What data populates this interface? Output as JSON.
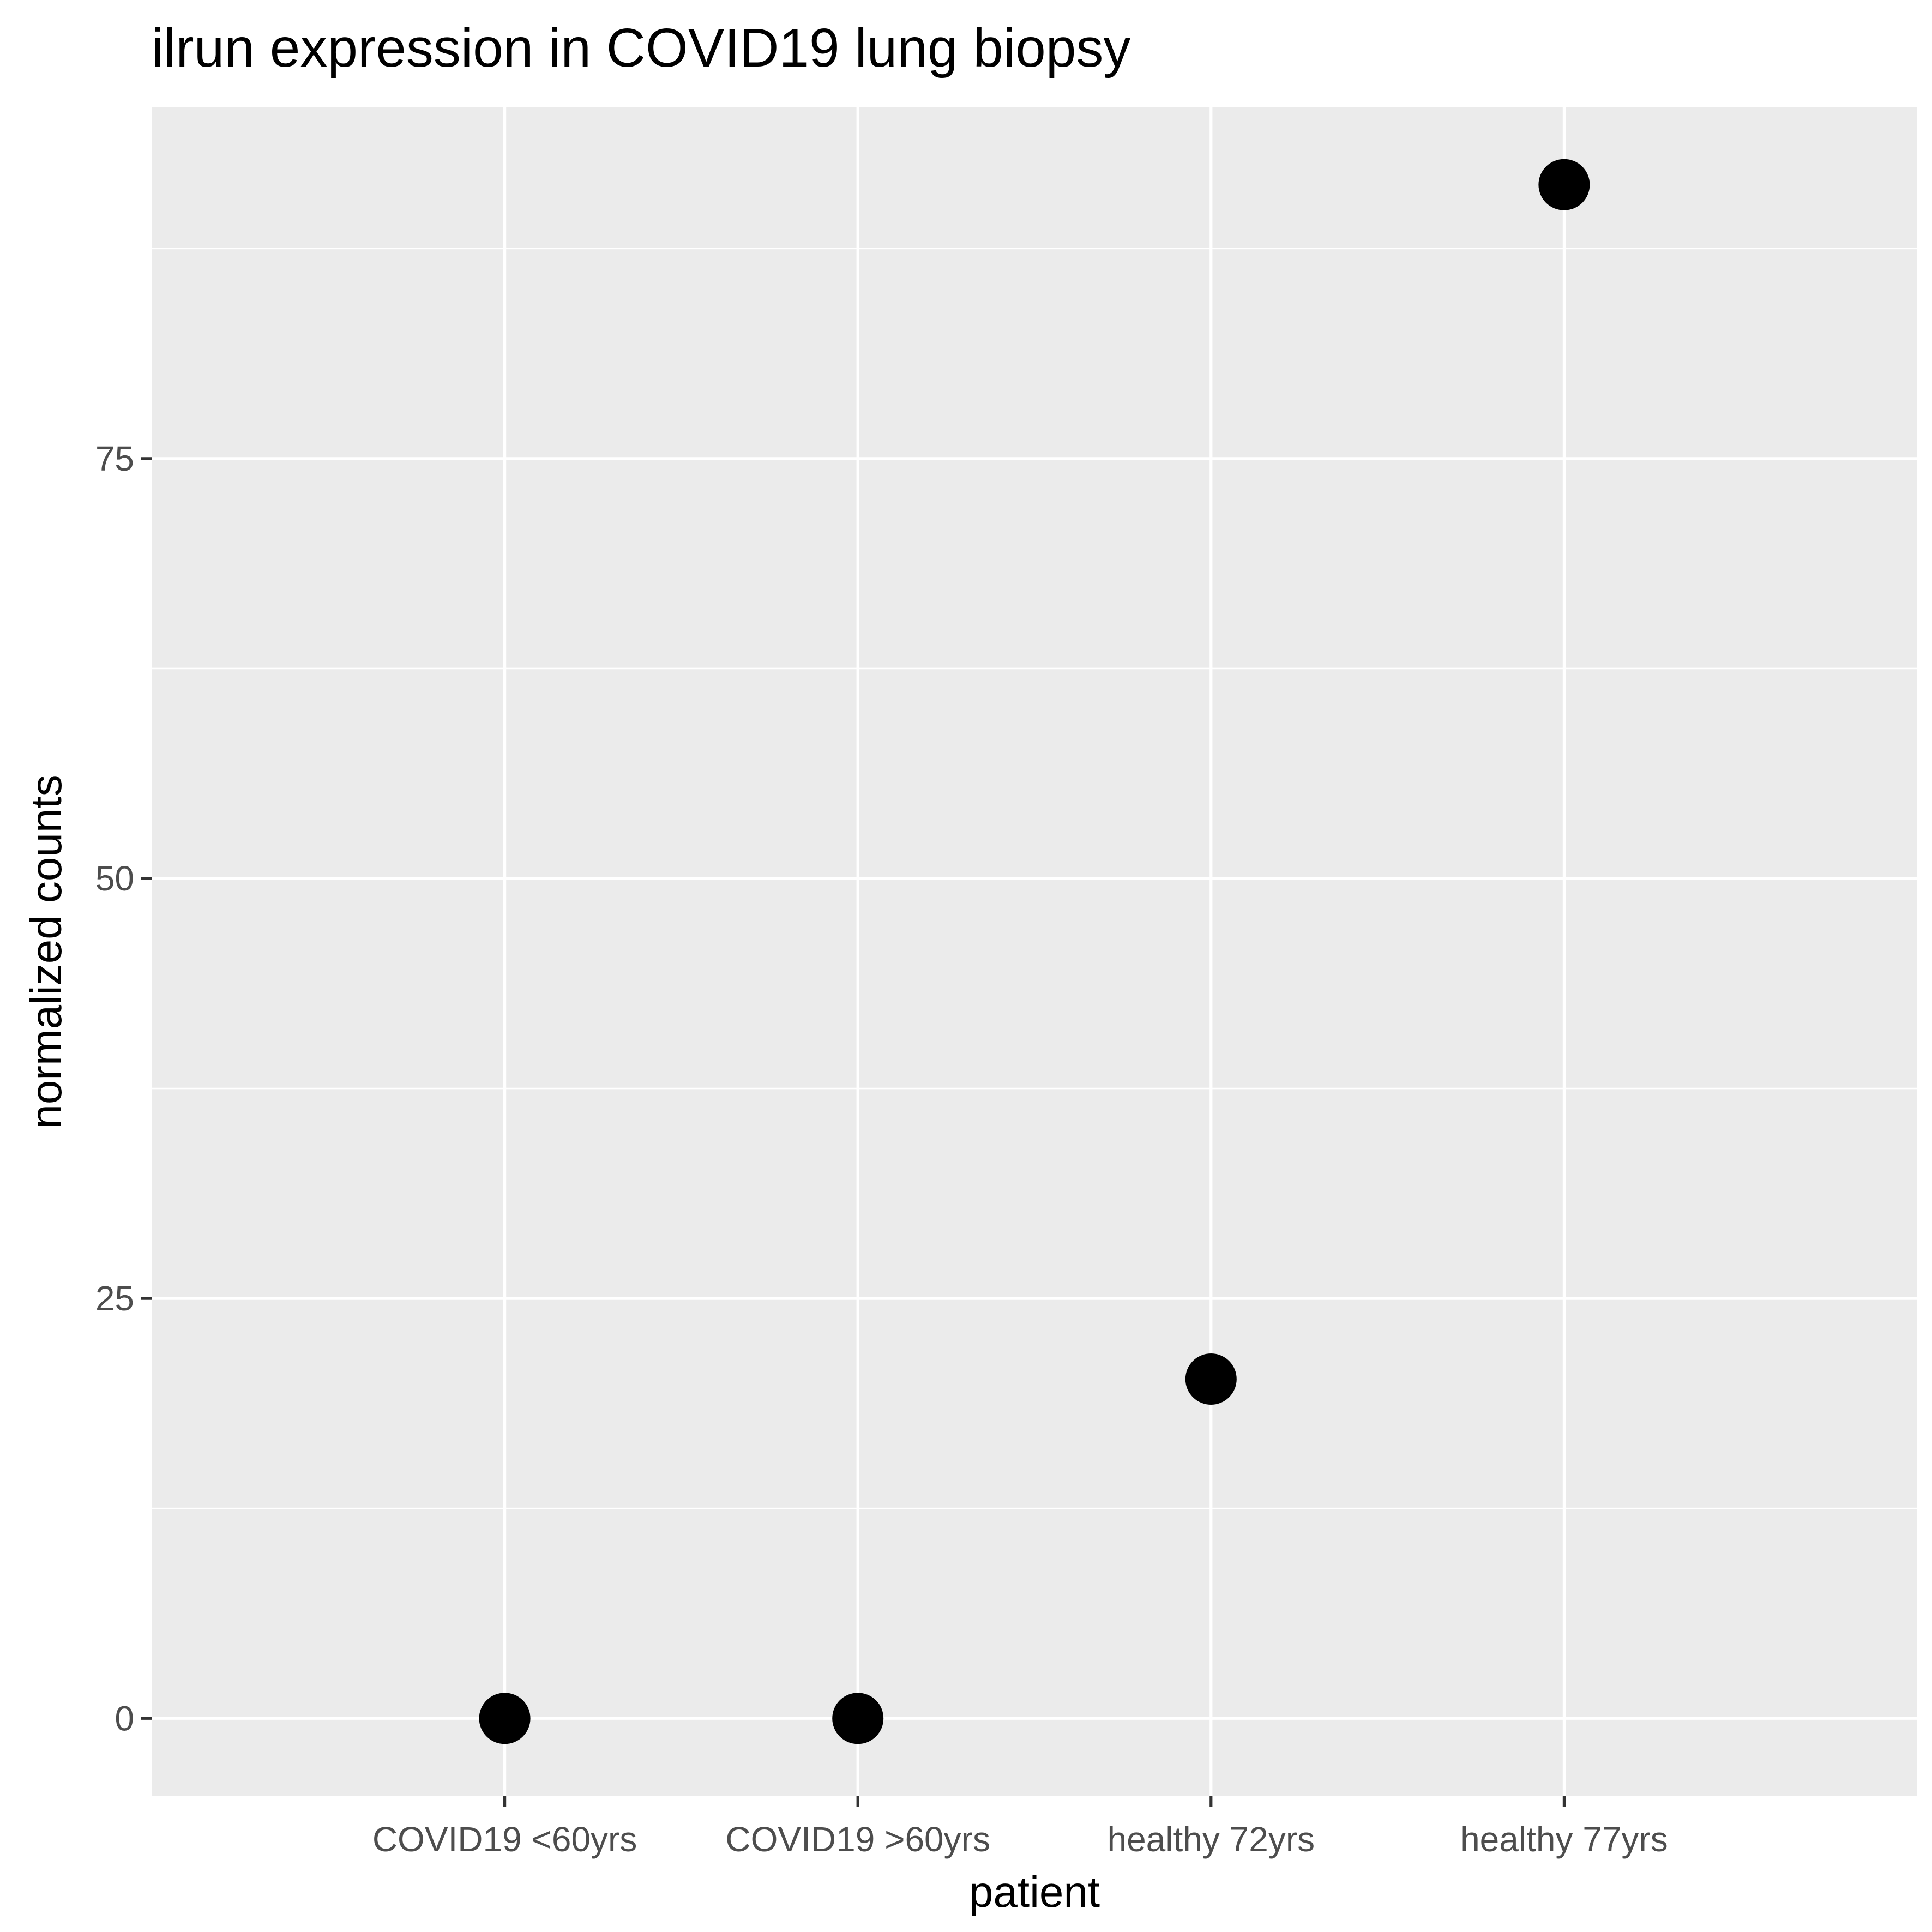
{
  "chart_data": {
    "type": "scatter",
    "title": "ilrun expression in COVID19 lung biopsy",
    "xlabel": "patient",
    "ylabel": "normalized counts",
    "categories": [
      "COVID19 <60yrs",
      "COVID19 >60yrs",
      "healthy 72yrs",
      "healthy 77yrs"
    ],
    "series": [
      {
        "values": [
          0,
          0,
          20.2,
          91.3
        ]
      }
    ],
    "y_ticks": [
      0,
      25,
      50,
      75
    ],
    "ylim": [
      -4.6,
      95.9
    ],
    "grid": true,
    "legend": "none",
    "colors": {
      "panel_background": "#ebebeb",
      "grid_line": "#ffffff",
      "point": "#000000",
      "tick_label": "#4d4d4d",
      "tick_mark": "#333333"
    }
  }
}
